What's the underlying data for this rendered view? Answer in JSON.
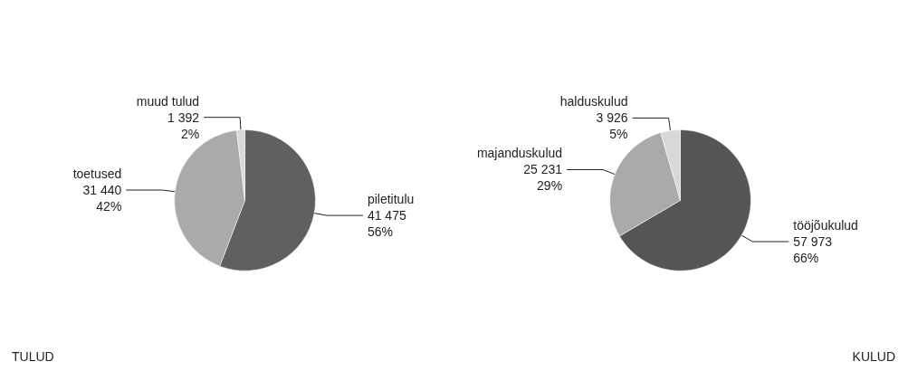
{
  "chart_data": [
    {
      "type": "pie",
      "title": "TULUD",
      "categories": [
        "piletitulu",
        "toetused",
        "muud tulud"
      ],
      "values": [
        41475,
        31440,
        1392
      ],
      "value_labels": [
        "41 475\n56%",
        "31 440\n42%",
        "1 392\n2%"
      ],
      "colors": [
        "#606060",
        "#aaaaaa",
        "#d9d9d9"
      ],
      "legend": false
    },
    {
      "type": "pie",
      "title": "KULUD",
      "categories": [
        "tööjõukulud",
        "majanduskulud",
        "halduskulud"
      ],
      "values": [
        57973,
        25231,
        3926
      ],
      "value_labels": [
        "57 973\n66%",
        "25 231\n29%",
        "3 926\n5%"
      ],
      "colors": [
        "#555555",
        "#aaaaaa",
        "#d9d9d9"
      ],
      "legend": false
    }
  ]
}
